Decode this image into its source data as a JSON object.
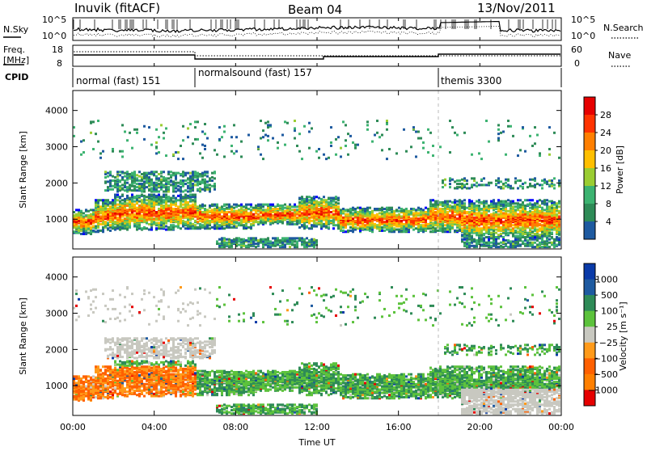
{
  "header": {
    "radar": "Inuvik (fitACF)",
    "beam": "Beam 04",
    "date": "13/Nov/2011"
  },
  "noise": {
    "left_label": "N.Sky",
    "right_label": "N.Search",
    "left_ticks": [
      "10^5",
      "10^0"
    ],
    "right_ticks": [
      "10^5",
      "10^0"
    ]
  },
  "freq": {
    "left_label_1": "Freq.",
    "left_label_2": "[MHz]",
    "left_ticks": [
      "18",
      "8"
    ],
    "right_label": "Nave",
    "right_ticks": [
      "60",
      "0"
    ]
  },
  "cpid": {
    "label": "CPID",
    "segments": [
      {
        "name": "normal (fast) 151",
        "start_h": 0
      },
      {
        "name": "normalsound (fast) 157",
        "start_h": 6
      },
      {
        "name": "themis 3300",
        "start_h": 18
      }
    ]
  },
  "time_axis": {
    "label": "Time UT",
    "ticks": [
      "00:00",
      "04:00",
      "08:00",
      "12:00",
      "16:00",
      "20:00",
      "00:00"
    ]
  },
  "chart_data": [
    {
      "type": "heatmap",
      "quantity": "Power",
      "ylabel": "Slant Range [km]",
      "xlabel": "Time UT",
      "y_ticks": [
        "1000",
        "2000",
        "3000",
        "4000"
      ],
      "ylim": [
        180,
        4550
      ],
      "xlim": [
        0,
        24
      ],
      "colorbar": {
        "label": "Power [dB]",
        "ticks": [
          "28",
          "24",
          "20",
          "16",
          "12",
          "8",
          "4"
        ]
      }
    },
    {
      "type": "heatmap",
      "quantity": "Velocity",
      "ylabel": "Slant Range [km]",
      "xlabel": "Time UT",
      "y_ticks": [
        "1000",
        "2000",
        "3000",
        "4000"
      ],
      "ylim": [
        180,
        4550
      ],
      "xlim": [
        0,
        24
      ],
      "colorbar": {
        "label": "Velocity [m s⁻¹]",
        "ticks": [
          "1000",
          "500",
          "100",
          "25",
          "−25",
          "−100",
          "−500",
          "−1000"
        ]
      }
    }
  ]
}
